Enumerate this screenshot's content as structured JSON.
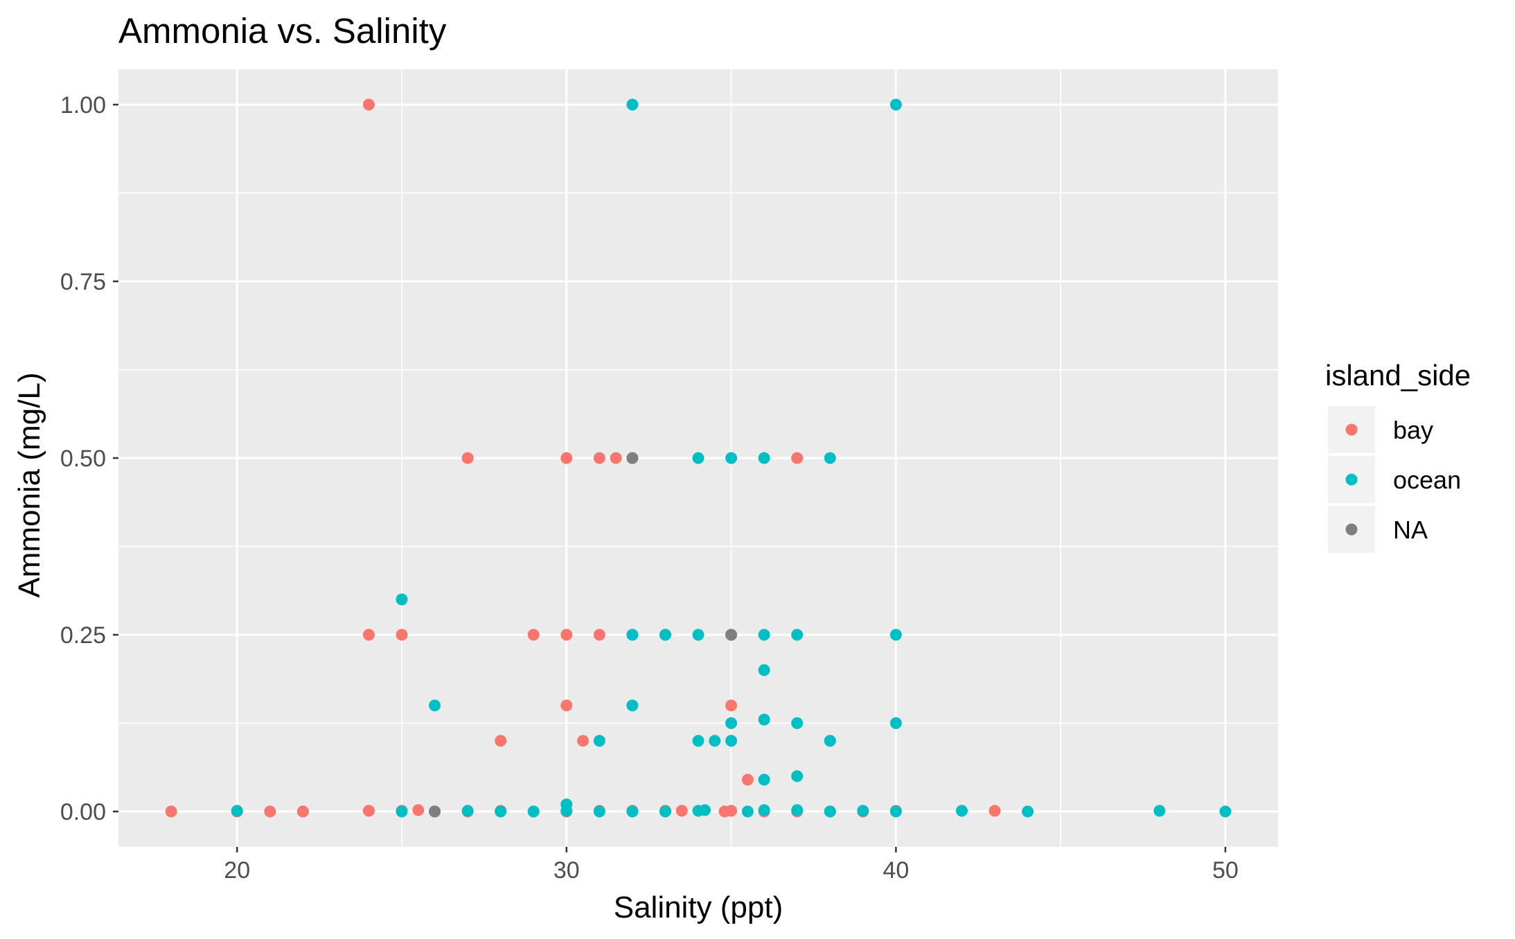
{
  "chart_data": {
    "type": "scatter",
    "title": "Ammonia vs. Salinity",
    "xlabel": "Salinity (ppt)",
    "ylabel": "Ammonia (mg/L)",
    "xlim": [
      16.4,
      51.6
    ],
    "ylim": [
      -0.05,
      1.05
    ],
    "x_ticks": [
      20,
      30,
      40,
      50
    ],
    "x_tick_labels": [
      "20",
      "30",
      "40",
      "50"
    ],
    "y_ticks": [
      0,
      0.25,
      0.5,
      0.75,
      1.0
    ],
    "y_tick_labels": [
      "0.00",
      "0.25",
      "0.50",
      "0.75",
      "1.00"
    ],
    "grid": true,
    "panel_background": "#ebebeb",
    "grid_color": "#ffffff",
    "legend": {
      "title": "island_side",
      "position": "right",
      "background": "#f2f2f2",
      "entries": [
        {
          "label": "bay",
          "color": "#f8766d"
        },
        {
          "label": "ocean",
          "color": "#00bfc4"
        },
        {
          "label": "NA",
          "color": "#7f7f7f"
        }
      ]
    },
    "series": [
      {
        "name": "bay",
        "color": "#f8766d",
        "points": [
          [
            18,
            0
          ],
          [
            20,
            0
          ],
          [
            21,
            0
          ],
          [
            22,
            0
          ],
          [
            22,
            0
          ],
          [
            24,
            0.001
          ],
          [
            24,
            1.0
          ],
          [
            24,
            0.25
          ],
          [
            25,
            0.25
          ],
          [
            25,
            0.001
          ],
          [
            25.5,
            0.002
          ],
          [
            26,
            0
          ],
          [
            27,
            0
          ],
          [
            27,
            0.5
          ],
          [
            28,
            0.1
          ],
          [
            28,
            0.001
          ],
          [
            29,
            0.25
          ],
          [
            29,
            0
          ],
          [
            30,
            0.5
          ],
          [
            30,
            0.25
          ],
          [
            30,
            0.15
          ],
          [
            30,
            0
          ],
          [
            30.5,
            0.1
          ],
          [
            31,
            0.5
          ],
          [
            31,
            0.25
          ],
          [
            31,
            0.001
          ],
          [
            31.5,
            0.5
          ],
          [
            32,
            0.25
          ],
          [
            32,
            0.001
          ],
          [
            33,
            0.25
          ],
          [
            33,
            0.001
          ],
          [
            33.5,
            0.001
          ],
          [
            34.8,
            0
          ],
          [
            35,
            0.15
          ],
          [
            35,
            0.001
          ],
          [
            35.5,
            0.045
          ],
          [
            36,
            0
          ],
          [
            37,
            0.5
          ],
          [
            37,
            0
          ],
          [
            38,
            0.1
          ],
          [
            38,
            0
          ],
          [
            39,
            0
          ],
          [
            40,
            0.001
          ],
          [
            43,
            0.001
          ]
        ]
      },
      {
        "name": "ocean",
        "color": "#00bfc4",
        "points": [
          [
            20,
            0.001
          ],
          [
            25,
            0.3
          ],
          [
            25,
            0
          ],
          [
            26,
            0.15
          ],
          [
            26,
            0
          ],
          [
            27,
            0.001
          ],
          [
            28,
            0
          ],
          [
            29,
            0
          ],
          [
            30,
            0.01
          ],
          [
            30,
            0.001
          ],
          [
            31,
            0.1
          ],
          [
            31,
            0
          ],
          [
            32,
            1.0
          ],
          [
            32,
            0.5
          ],
          [
            32,
            0.25
          ],
          [
            32,
            0.15
          ],
          [
            32,
            0
          ],
          [
            33,
            0.25
          ],
          [
            33,
            0
          ],
          [
            34,
            0.5
          ],
          [
            34,
            0.25
          ],
          [
            34,
            0.1
          ],
          [
            34,
            0.001
          ],
          [
            34.2,
            0.002
          ],
          [
            34.5,
            0.1
          ],
          [
            35,
            0.5
          ],
          [
            35,
            0.25
          ],
          [
            35,
            0.125
          ],
          [
            35,
            0.1
          ],
          [
            35.5,
            0
          ],
          [
            36,
            0.5
          ],
          [
            36,
            0.25
          ],
          [
            36,
            0.2
          ],
          [
            36,
            0.13
          ],
          [
            36,
            0.045
          ],
          [
            36,
            0.002
          ],
          [
            37,
            0.25
          ],
          [
            37,
            0.125
          ],
          [
            37,
            0.05
          ],
          [
            37,
            0.002
          ],
          [
            38,
            0.5
          ],
          [
            38,
            0.1
          ],
          [
            38,
            0
          ],
          [
            39,
            0.001
          ],
          [
            40,
            1.0
          ],
          [
            40,
            0.25
          ],
          [
            40,
            0.125
          ],
          [
            40,
            0
          ],
          [
            42,
            0.001
          ],
          [
            44,
            0
          ],
          [
            48,
            0.001
          ],
          [
            50,
            0
          ]
        ]
      },
      {
        "name": "NA",
        "color": "#7f7f7f",
        "points": [
          [
            32,
            0.5
          ],
          [
            35,
            0.25
          ],
          [
            26,
            0
          ]
        ]
      }
    ]
  }
}
